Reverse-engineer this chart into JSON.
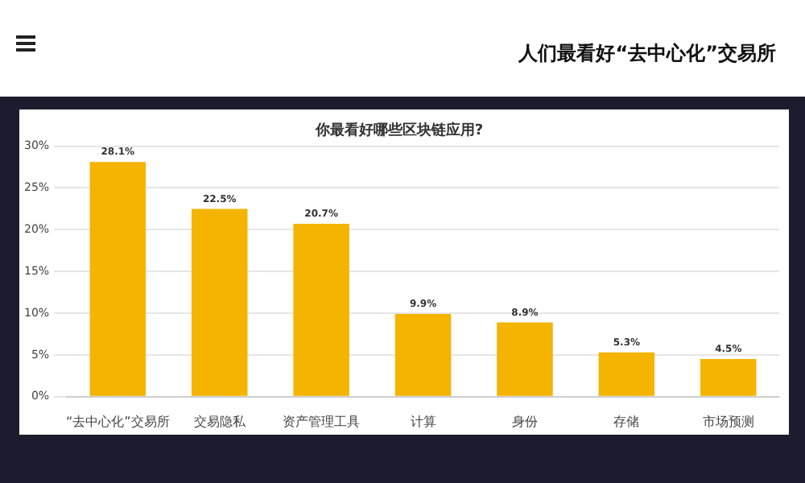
{
  "chart_data": {
    "type": "bar",
    "title": "人们最看好“去中心化”交易所",
    "subtitle": "你最看好哪些区块链应用?",
    "categories": [
      "“去中心化”交易所",
      "交易隐私",
      "资产管理工具",
      "计算",
      "身份",
      "存储",
      "市场预测"
    ],
    "values": [
      28.1,
      22.5,
      20.7,
      9.9,
      8.9,
      5.3,
      4.5
    ],
    "value_labels": [
      "28.1%",
      "22.5%",
      "20.7%",
      "9.9%",
      "8.9%",
      "5.3%",
      "4.5%"
    ],
    "color": "#f5b400",
    "ylim": [
      0,
      30
    ],
    "yticks": [
      {
        "value": 0,
        "label": "0%"
      },
      {
        "value": 5,
        "label": "5%"
      },
      {
        "value": 10,
        "label": "10%"
      },
      {
        "value": 15,
        "label": "15%"
      },
      {
        "value": 20,
        "label": "20%"
      },
      {
        "value": 25,
        "label": "25%"
      },
      {
        "value": 30,
        "label": "30%"
      }
    ],
    "grid": "y",
    "legend": false
  }
}
